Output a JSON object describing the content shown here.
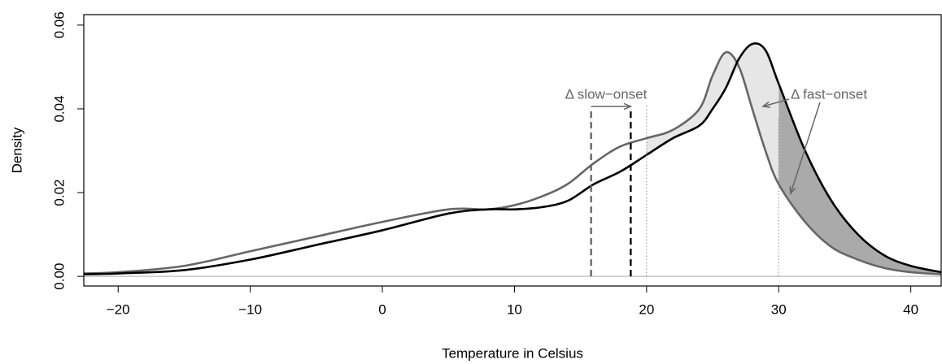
{
  "chart_data": {
    "type": "line",
    "x_label": "Temperature in Celsius",
    "y_label": "Density",
    "x": [
      -22.6,
      -20,
      -15,
      -10,
      -5,
      0,
      5,
      8,
      10,
      12,
      14,
      16,
      18,
      20,
      22,
      24,
      25,
      26,
      27,
      28,
      29,
      30,
      32,
      34,
      36,
      38,
      40,
      42.3
    ],
    "series": [
      {
        "color": "#666666",
        "values": [
          0.0007,
          0.001,
          0.0025,
          0.006,
          0.0095,
          0.013,
          0.016,
          0.016,
          0.017,
          0.019,
          0.022,
          0.027,
          0.031,
          0.033,
          0.035,
          0.04,
          0.048,
          0.0535,
          0.05,
          0.04,
          0.03,
          0.022,
          0.013,
          0.007,
          0.004,
          0.002,
          0.001,
          0.0005
        ]
      },
      {
        "color": "#000000",
        "values": [
          0.0005,
          0.0007,
          0.0015,
          0.004,
          0.0075,
          0.011,
          0.015,
          0.016,
          0.016,
          0.0165,
          0.018,
          0.022,
          0.025,
          0.029,
          0.033,
          0.036,
          0.04,
          0.045,
          0.052,
          0.0555,
          0.054,
          0.046,
          0.03,
          0.018,
          0.01,
          0.005,
          0.0025,
          0.001
        ]
      }
    ],
    "shaded_regions": [
      {
        "from": 20,
        "to": 30,
        "color": "#e6e6e6"
      },
      {
        "from": 30,
        "to": 42.3,
        "color": "#aaaaaa"
      }
    ],
    "vlines": [
      {
        "x": 15.8,
        "top": 0.04,
        "color": "#666666",
        "style": "dashed"
      },
      {
        "x": 18.8,
        "top": 0.04,
        "color": "#000000",
        "style": "dashed"
      },
      {
        "x": 20,
        "top": 0.041,
        "color": "#888888",
        "style": "dotted"
      },
      {
        "x": 30,
        "top": 0.038,
        "color": "#888888",
        "style": "dotted"
      }
    ],
    "annotations": [
      "Δ slow−onset",
      "Δ fast−onset"
    ],
    "xlim": [
      -22.6,
      42.3
    ],
    "ylim": [
      -0.0023,
      0.0625
    ],
    "xticks": [
      {
        "value": -20,
        "label": "−20"
      },
      {
        "value": -10,
        "label": "−10"
      },
      0,
      10,
      20,
      30,
      40
    ],
    "yticks": [
      {
        "value": 0,
        "label": "0.00"
      },
      {
        "value": 0.02,
        "label": "0.02"
      },
      {
        "value": 0.04,
        "label": "0.04"
      },
      {
        "value": 0.06,
        "label": "0.06"
      }
    ]
  }
}
